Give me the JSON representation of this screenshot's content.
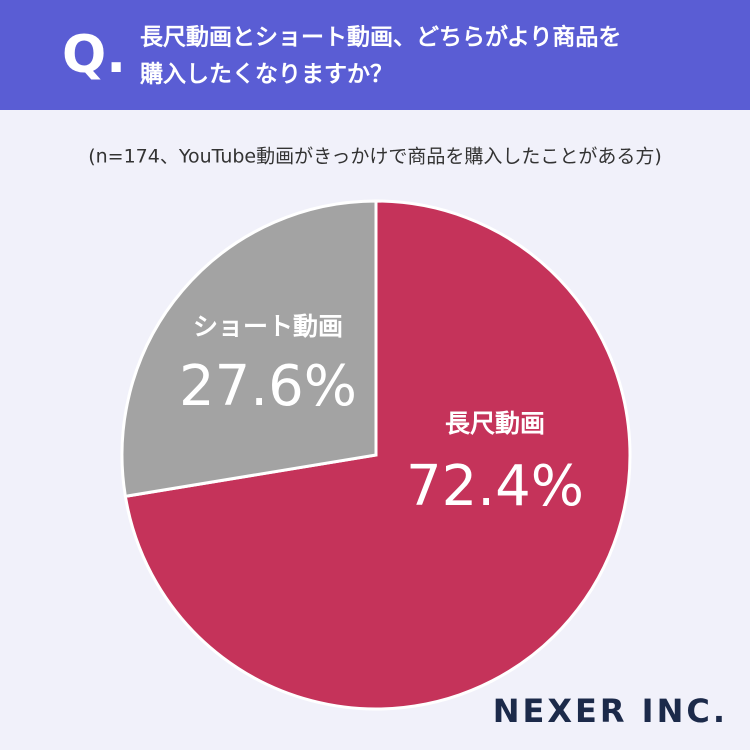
{
  "header": {
    "marker": "Q."
  },
  "chart_data": {
    "type": "pie",
    "title": [
      "長尺動画とショート動画、どちらがより商品を",
      "購入したくなりますか？"
    ],
    "subtitle": "(n=174、YouTube動画がきっかけで商品を購入したことがある方)",
    "categories": [
      "長尺動画",
      "ショート動画"
    ],
    "values": [
      72.4,
      27.6
    ],
    "value_labels": [
      "72.4%",
      "27.6%"
    ],
    "colors": [
      "#c5335a",
      "#a3a3a3"
    ]
  },
  "logo": "NEXER INC."
}
